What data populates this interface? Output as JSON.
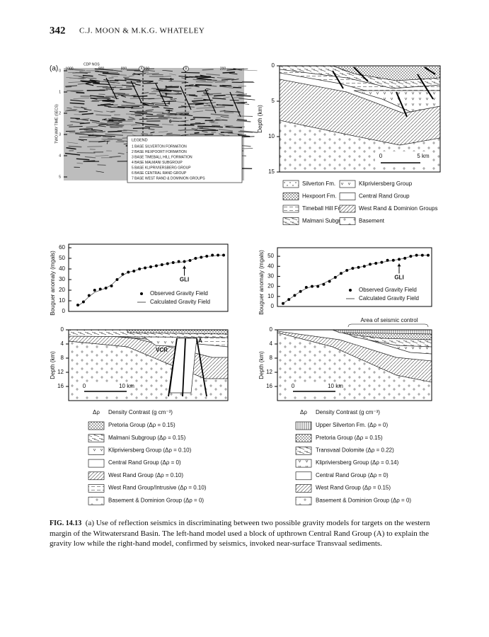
{
  "header": {
    "page_number": "342",
    "authors": "C.J. MOON & M.K.G. WHATELEY"
  },
  "panel_label": "(a)",
  "seismic_section": {
    "cdp_label": "CDP NOS",
    "cdp_ticks": [
      "1000",
      "900",
      "800",
      "600",
      "400",
      "200"
    ],
    "cdp_markers": [
      "A",
      "B"
    ],
    "axis_title": "TWO-WAY TIME (SECS)",
    "time_ticks": [
      0,
      1,
      2,
      3,
      4,
      5
    ],
    "markers": [
      "1",
      "2",
      "3",
      "4",
      "5",
      "6",
      "7"
    ],
    "legend_title": "LEGEND",
    "legend": [
      "1 BASE SILVERTON FORMATION",
      "2 BASE HEXPOORT FORMATION",
      "3 BASE TIMEBALL HILL FORMATION",
      "4 BASE MALMANI SUBGROUP",
      "5 BASE KLIPRIVIERSBERG GROUP",
      "6 BASE CENTRAL RAND GROUP",
      "7 BASE WEST RAND & DOMINION GROUPS"
    ]
  },
  "depth_section": {
    "axis_title": "Depth (km)",
    "yticks": [
      0,
      5,
      10,
      15
    ],
    "scale": [
      "0",
      "5 km"
    ]
  },
  "section_legend": [
    "Silverton Fm.",
    "Klipriviersberg Group",
    "Hexpoort Fm.",
    "Central Rand Group",
    "Timeball Hill Fm.",
    "West Rand & Dominion Groups",
    "Malmani Subgroup",
    "Basement"
  ],
  "gravity_models": [
    {
      "gravity_chart": {
        "y_label": "Bouguer anomaly (mgals)",
        "ylim": [
          0,
          60
        ],
        "yticks": [
          0,
          10,
          20,
          30,
          40,
          50,
          60
        ],
        "annotation": "GLI",
        "series": [
          {
            "name": "Observed Gravity Field",
            "values": [
              6,
              9,
              15,
              20,
              21,
              22,
              24,
              30,
              35,
              37,
              38,
              40,
              41,
              42,
              43,
              44,
              45,
              46,
              47,
              47,
              48,
              50,
              51,
              52,
              53,
              53,
              53
            ]
          },
          {
            "name": "Calculated Gravity Field",
            "values": [
              5,
              9,
              14,
              18,
              20,
              22,
              25,
              30,
              34,
              37,
              38,
              40,
              41,
              42,
              43,
              44,
              45,
              46,
              46,
              47,
              48,
              50,
              51,
              52,
              52,
              53,
              53
            ]
          }
        ]
      },
      "depth_section": {
        "axis_title": "Depth (km)",
        "yticks": [
          0,
          4,
          8,
          12,
          16
        ],
        "scale": [
          "0",
          "10 km"
        ],
        "labels": [
          "VCR",
          "A"
        ]
      },
      "density_legend": {
        "symbol": "Δρ",
        "title": "Density Contrast (g cm⁻³)",
        "items": [
          "Pretoria Group (Δρ = 0.15)",
          "Malmani Subgroup (Δρ = 0.15)",
          "Klipriviersberg Group (Δρ = 0.10)",
          "Central Rand Group (Δρ = 0)",
          "West Rand Group (Δρ = 0.10)",
          "West Rand Group/Intrusive (Δρ = 0.10)",
          "Basement & Dominion Group (Δρ = 0)"
        ]
      }
    },
    {
      "gravity_chart": {
        "y_label": "Bouguer anomaly (mgals)",
        "ylim": [
          0,
          55
        ],
        "yticks": [
          0,
          10,
          20,
          30,
          40,
          50
        ],
        "annotation": "GLI",
        "series": [
          {
            "name": "Observed Gravity Field",
            "values": [
              3,
              7,
              11,
              15,
              19,
              20,
              20,
              22,
              25,
              29,
              33,
              36,
              38,
              39,
              40,
              42,
              43,
              44,
              46,
              46,
              47,
              48,
              50,
              51,
              51,
              51
            ]
          },
          {
            "name": "Calculated Gravity Field",
            "values": [
              3,
              7,
              11,
              15,
              18,
              20,
              21,
              23,
              26,
              29,
              33,
              36,
              38,
              39,
              40,
              42,
              43,
              44,
              45,
              46,
              47,
              48,
              50,
              51,
              51,
              51
            ]
          }
        ]
      },
      "depth_section": {
        "axis_title": "Depth (km)",
        "yticks": [
          0,
          4,
          8,
          12,
          16
        ],
        "scale": [
          "0",
          "10 km"
        ],
        "annotation": "Area of seismic control"
      },
      "density_legend": {
        "symbol": "Δρ",
        "title": "Density Contrast (g cm⁻³)",
        "items": [
          "Upper Silverton Fm. (Δρ = 0)",
          "Pretoria Group (Δρ = 0.15)",
          "Transvaal Dolomite (Δρ = 0.22)",
          "Klipriviersberg Group (Δρ = 0.14)",
          "Central Rand Group (Δρ = 0)",
          "West Rand Group (Δρ = 0.15)",
          "Basement & Dominion Group (Δρ = 0)"
        ]
      }
    }
  ],
  "caption": {
    "label": "FIG. 14.13",
    "text": "(a) Use of reflection seismics in discriminating between two possible gravity models for targets on the western margin of the Witwatersrand Basin. The left-hand model used a block of upthrown Central Rand Group (A) to explain the gravity low while the right-hand model, confirmed by seismics, invoked near-surface Transvaal sediments."
  }
}
